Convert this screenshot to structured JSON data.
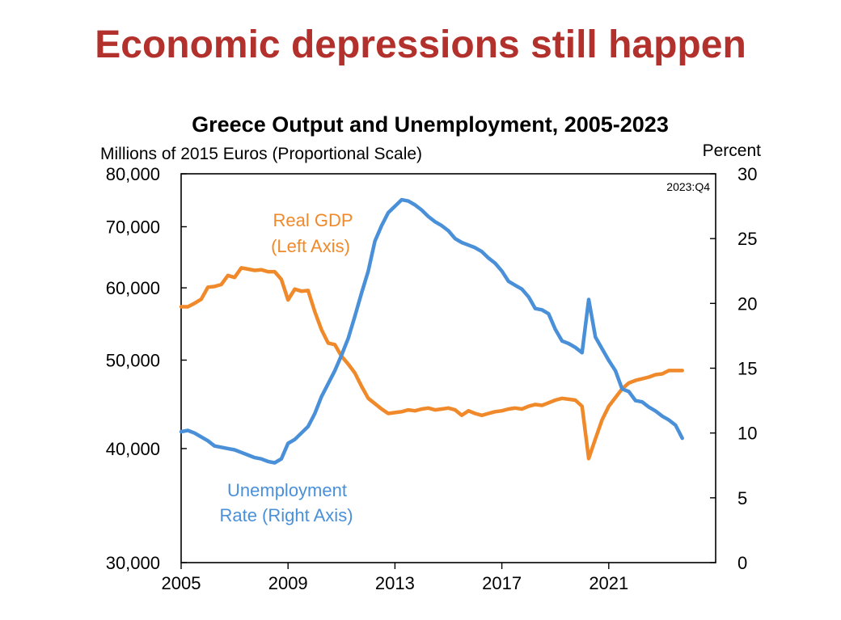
{
  "slide": {
    "title": "Economic depressions still happen"
  },
  "chart_data": {
    "type": "line",
    "title": "Greece Output and Unemployment, 2005-2023",
    "ylabel_left": "Millions of 2015 Euros (Proportional Scale)",
    "ylabel_right": "Percent",
    "note": "2023:Q4",
    "x_ticks": [
      "2005",
      "2009",
      "2013",
      "2017",
      "2021"
    ],
    "y_left_ticks": [
      "30,000",
      "40,000",
      "50,000",
      "60,000",
      "70,000",
      "80,000"
    ],
    "y_right_ticks": [
      "0",
      "5",
      "10",
      "15",
      "20",
      "25",
      "30"
    ],
    "y_left_scale": "log",
    "y_left_range": [
      30000,
      80000
    ],
    "y_right_range": [
      0,
      30
    ],
    "x_range": [
      2005,
      2025
    ],
    "grid": false,
    "colors": {
      "gdp": "#f0892a",
      "unemployment": "#4a90d9",
      "title": "#b3312c"
    },
    "series": [
      {
        "name": "Real GDP",
        "label_lines": [
          "Real GDP",
          "(Left Axis)"
        ],
        "axis": "left",
        "x": [
          2005.0,
          2005.25,
          2005.5,
          2005.75,
          2006.0,
          2006.25,
          2006.5,
          2006.75,
          2007.0,
          2007.25,
          2007.5,
          2007.75,
          2008.0,
          2008.25,
          2008.5,
          2008.75,
          2009.0,
          2009.25,
          2009.5,
          2009.75,
          2010.0,
          2010.25,
          2010.5,
          2010.75,
          2011.0,
          2011.25,
          2011.5,
          2011.75,
          2012.0,
          2012.25,
          2012.5,
          2012.75,
          2013.0,
          2013.25,
          2013.5,
          2013.75,
          2014.0,
          2014.25,
          2014.5,
          2014.75,
          2015.0,
          2015.25,
          2015.5,
          2015.75,
          2016.0,
          2016.25,
          2016.5,
          2016.75,
          2017.0,
          2017.25,
          2017.5,
          2017.75,
          2018.0,
          2018.25,
          2018.5,
          2018.75,
          2019.0,
          2019.25,
          2019.5,
          2019.75,
          2020.0,
          2020.25,
          2020.5,
          2020.75,
          2021.0,
          2021.25,
          2021.5,
          2021.75,
          2022.0,
          2022.25,
          2022.5,
          2022.75,
          2023.0,
          2023.25,
          2023.5,
          2023.75
        ],
        "values": [
          57200,
          57200,
          57700,
          58300,
          60100,
          60200,
          60500,
          61900,
          61600,
          63100,
          62900,
          62700,
          62800,
          62500,
          62500,
          61300,
          58200,
          59800,
          59500,
          59600,
          56500,
          54000,
          52200,
          52000,
          50500,
          49500,
          48400,
          46800,
          45400,
          44800,
          44200,
          43700,
          43800,
          43900,
          44100,
          44000,
          44200,
          44300,
          44100,
          44200,
          44300,
          44100,
          43500,
          44000,
          43700,
          43500,
          43700,
          43900,
          44000,
          44200,
          44300,
          44200,
          44500,
          44700,
          44600,
          44900,
          45200,
          45400,
          45300,
          45200,
          44500,
          39000,
          41000,
          43000,
          44500,
          45500,
          46500,
          47200,
          47500,
          47700,
          47900,
          48200,
          48300,
          48700,
          48700,
          48700
        ]
      },
      {
        "name": "Unemployment Rate",
        "label_lines": [
          "Unemployment",
          "Rate (Right Axis)"
        ],
        "axis": "right",
        "x": [
          2005.0,
          2005.25,
          2005.5,
          2005.75,
          2006.0,
          2006.25,
          2006.5,
          2006.75,
          2007.0,
          2007.25,
          2007.5,
          2007.75,
          2008.0,
          2008.25,
          2008.5,
          2008.75,
          2009.0,
          2009.25,
          2009.5,
          2009.75,
          2010.0,
          2010.25,
          2010.5,
          2010.75,
          2011.0,
          2011.25,
          2011.5,
          2011.75,
          2012.0,
          2012.25,
          2012.5,
          2012.75,
          2013.0,
          2013.25,
          2013.5,
          2013.75,
          2014.0,
          2014.25,
          2014.5,
          2014.75,
          2015.0,
          2015.25,
          2015.5,
          2015.75,
          2016.0,
          2016.25,
          2016.5,
          2016.75,
          2017.0,
          2017.25,
          2017.5,
          2017.75,
          2018.0,
          2018.25,
          2018.5,
          2018.75,
          2019.0,
          2019.25,
          2019.5,
          2019.75,
          2020.0,
          2020.25,
          2020.5,
          2020.75,
          2021.0,
          2021.25,
          2021.5,
          2021.75,
          2022.0,
          2022.25,
          2022.5,
          2022.75,
          2023.0,
          2023.25,
          2023.5,
          2023.75
        ],
        "values": [
          10.1,
          10.2,
          10.0,
          9.7,
          9.4,
          9.0,
          8.9,
          8.8,
          8.7,
          8.5,
          8.3,
          8.1,
          8.0,
          7.8,
          7.7,
          8.0,
          9.2,
          9.5,
          10.0,
          10.5,
          11.5,
          12.8,
          13.8,
          14.8,
          16.0,
          17.3,
          19.0,
          20.8,
          22.5,
          24.8,
          26.0,
          27.0,
          27.5,
          28.0,
          27.9,
          27.6,
          27.2,
          26.7,
          26.3,
          26.0,
          25.6,
          25.0,
          24.7,
          24.5,
          24.3,
          24.0,
          23.5,
          23.1,
          22.5,
          21.7,
          21.4,
          21.1,
          20.5,
          19.6,
          19.5,
          19.2,
          18.0,
          17.1,
          16.9,
          16.6,
          16.2,
          20.3,
          17.4,
          16.5,
          15.6,
          14.8,
          13.4,
          13.2,
          12.5,
          12.4,
          12.0,
          11.7,
          11.3,
          11.0,
          10.6,
          9.6
        ]
      }
    ]
  }
}
